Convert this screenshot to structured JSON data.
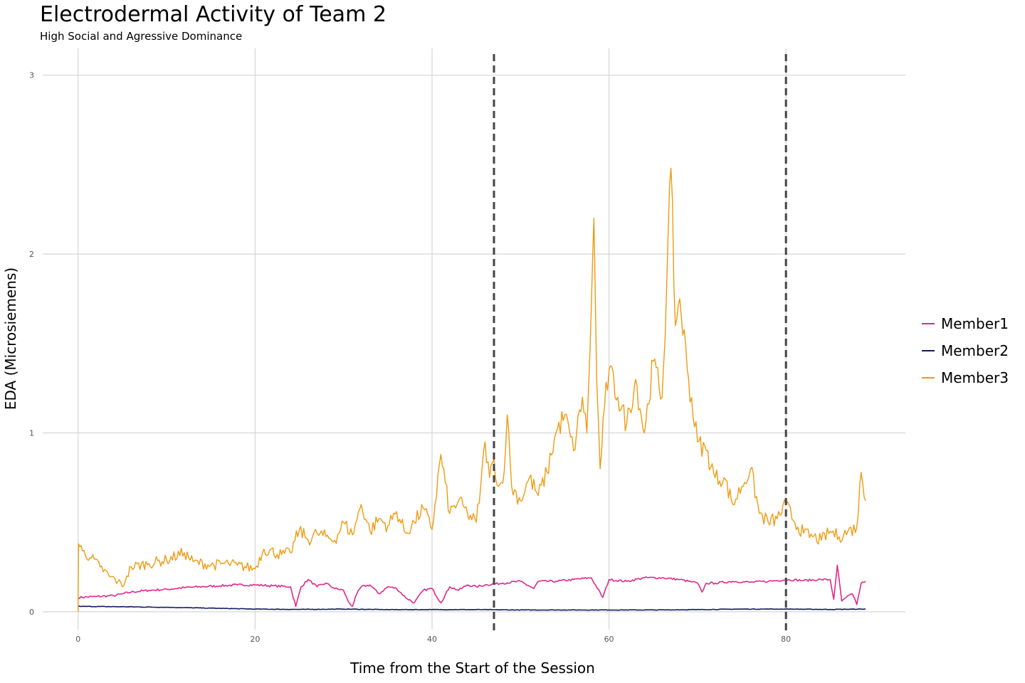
{
  "chart_data": {
    "type": "line",
    "title": "Electrodermal Activity of Team 2",
    "subtitle": "High Social and Agressive Dominance",
    "xlabel": "Time from the Start of the Session",
    "ylabel": "EDA (Microsiemens)",
    "xlim": [
      -4,
      93.5
    ],
    "ylim": [
      -0.1,
      3.15
    ],
    "x_ticks": [
      0,
      20,
      40,
      60,
      80
    ],
    "y_ticks": [
      0,
      1,
      2,
      3
    ],
    "vlines": [
      47,
      80
    ],
    "legend": [
      "Member1",
      "Member2",
      "Member3"
    ],
    "series": [
      {
        "name": "Member1",
        "color": "#e0288a",
        "points": [
          [
            0,
            0.08
          ],
          [
            2,
            0.085
          ],
          [
            4,
            0.09
          ],
          [
            5,
            0.1
          ],
          [
            6,
            0.11
          ],
          [
            8,
            0.12
          ],
          [
            10,
            0.125
          ],
          [
            12,
            0.135
          ],
          [
            14,
            0.14
          ],
          [
            16,
            0.145
          ],
          [
            18,
            0.15
          ],
          [
            20,
            0.15
          ],
          [
            22,
            0.145
          ],
          [
            24,
            0.14
          ],
          [
            24.6,
            0.03
          ],
          [
            25.2,
            0.14
          ],
          [
            26,
            0.18
          ],
          [
            27,
            0.14
          ],
          [
            28,
            0.16
          ],
          [
            29,
            0.13
          ],
          [
            30,
            0.12
          ],
          [
            30.5,
            0.06
          ],
          [
            31,
            0.03
          ],
          [
            31.5,
            0.1
          ],
          [
            32,
            0.14
          ],
          [
            33,
            0.15
          ],
          [
            34,
            0.1
          ],
          [
            35,
            0.14
          ],
          [
            36,
            0.13
          ],
          [
            37,
            0.08
          ],
          [
            38,
            0.05
          ],
          [
            39,
            0.12
          ],
          [
            40,
            0.13
          ],
          [
            41,
            0.05
          ],
          [
            42,
            0.14
          ],
          [
            43,
            0.12
          ],
          [
            44,
            0.15
          ],
          [
            45,
            0.14
          ],
          [
            46,
            0.15
          ],
          [
            48,
            0.16
          ],
          [
            50,
            0.17
          ],
          [
            51.5,
            0.13
          ],
          [
            52,
            0.17
          ],
          [
            54,
            0.17
          ],
          [
            56,
            0.18
          ],
          [
            58,
            0.19
          ],
          [
            59.3,
            0.08
          ],
          [
            60,
            0.18
          ],
          [
            62,
            0.17
          ],
          [
            64,
            0.19
          ],
          [
            66,
            0.19
          ],
          [
            68,
            0.18
          ],
          [
            70,
            0.16
          ],
          [
            70.5,
            0.11
          ],
          [
            71,
            0.16
          ],
          [
            72,
            0.16
          ],
          [
            74,
            0.17
          ],
          [
            76,
            0.165
          ],
          [
            78,
            0.17
          ],
          [
            80,
            0.18
          ],
          [
            82,
            0.175
          ],
          [
            84,
            0.18
          ],
          [
            85,
            0.18
          ],
          [
            85.4,
            0.07
          ],
          [
            85.8,
            0.26
          ],
          [
            86.3,
            0.06
          ],
          [
            86.8,
            0.08
          ],
          [
            87.5,
            0.1
          ],
          [
            88,
            0.04
          ],
          [
            88.5,
            0.16
          ],
          [
            89,
            0.17
          ]
        ]
      },
      {
        "name": "Member2",
        "color": "#101a60",
        "points": [
          [
            0,
            0.03
          ],
          [
            5,
            0.028
          ],
          [
            10,
            0.025
          ],
          [
            15,
            0.02
          ],
          [
            20,
            0.015
          ],
          [
            25,
            0.013
          ],
          [
            30,
            0.015
          ],
          [
            35,
            0.012
          ],
          [
            40,
            0.012
          ],
          [
            45,
            0.012
          ],
          [
            50,
            0.01
          ],
          [
            55,
            0.01
          ],
          [
            60,
            0.01
          ],
          [
            65,
            0.01
          ],
          [
            70,
            0.012
          ],
          [
            75,
            0.015
          ],
          [
            80,
            0.015
          ],
          [
            85,
            0.013
          ],
          [
            89,
            0.015
          ]
        ]
      },
      {
        "name": "Member3",
        "color": "#f09a10",
        "points": [
          [
            0,
            0.0
          ],
          [
            0.05,
            0.38
          ],
          [
            0.5,
            0.34
          ],
          [
            1.5,
            0.3
          ],
          [
            2.5,
            0.25
          ],
          [
            3.5,
            0.2
          ],
          [
            4.5,
            0.17
          ],
          [
            5,
            0.14
          ],
          [
            5.5,
            0.2
          ],
          [
            6,
            0.25
          ],
          [
            8,
            0.27
          ],
          [
            10,
            0.29
          ],
          [
            12,
            0.33
          ],
          [
            13,
            0.28
          ],
          [
            15,
            0.26
          ],
          [
            17,
            0.27
          ],
          [
            18,
            0.26
          ],
          [
            20,
            0.24
          ],
          [
            21,
            0.35
          ],
          [
            23,
            0.32
          ],
          [
            24,
            0.33
          ],
          [
            25,
            0.46
          ],
          [
            26,
            0.4
          ],
          [
            27,
            0.44
          ],
          [
            28,
            0.42
          ],
          [
            29,
            0.4
          ],
          [
            30,
            0.5
          ],
          [
            31,
            0.43
          ],
          [
            32,
            0.6
          ],
          [
            33,
            0.45
          ],
          [
            34,
            0.52
          ],
          [
            35,
            0.48
          ],
          [
            36,
            0.56
          ],
          [
            37,
            0.44
          ],
          [
            38,
            0.5
          ],
          [
            39,
            0.58
          ],
          [
            40,
            0.46
          ],
          [
            41,
            0.88
          ],
          [
            42,
            0.55
          ],
          [
            43,
            0.62
          ],
          [
            44,
            0.55
          ],
          [
            45,
            0.5
          ],
          [
            45.5,
            0.7
          ],
          [
            46,
            0.95
          ],
          [
            46.5,
            0.75
          ],
          [
            47,
            0.85
          ],
          [
            47.5,
            0.7
          ],
          [
            48,
            0.72
          ],
          [
            48.5,
            1.1
          ],
          [
            49,
            0.7
          ],
          [
            50,
            0.62
          ],
          [
            51,
            0.75
          ],
          [
            52,
            0.65
          ],
          [
            53,
            0.78
          ],
          [
            54,
            1.0
          ],
          [
            55,
            1.1
          ],
          [
            56,
            0.9
          ],
          [
            57,
            1.2
          ],
          [
            57.5,
            1.0
          ],
          [
            58,
            1.7
          ],
          [
            58.3,
            2.2
          ],
          [
            58.6,
            1.3
          ],
          [
            59,
            0.8
          ],
          [
            59.5,
            1.15
          ],
          [
            60,
            1.35
          ],
          [
            61,
            1.2
          ],
          [
            62,
            1.05
          ],
          [
            63,
            1.3
          ],
          [
            64,
            1.0
          ],
          [
            65,
            1.4
          ],
          [
            66,
            1.2
          ],
          [
            66.5,
            1.8
          ],
          [
            67,
            2.48
          ],
          [
            67.5,
            1.6
          ],
          [
            68,
            1.75
          ],
          [
            69,
            1.3
          ],
          [
            70,
            0.95
          ],
          [
            71,
            0.9
          ],
          [
            72,
            0.75
          ],
          [
            73,
            0.75
          ],
          [
            74,
            0.6
          ],
          [
            75,
            0.7
          ],
          [
            76,
            0.8
          ],
          [
            77,
            0.55
          ],
          [
            78,
            0.5
          ],
          [
            79,
            0.52
          ],
          [
            80,
            0.6
          ],
          [
            81,
            0.5
          ],
          [
            82,
            0.44
          ],
          [
            83,
            0.42
          ],
          [
            84,
            0.4
          ],
          [
            85,
            0.45
          ],
          [
            86,
            0.42
          ],
          [
            87,
            0.45
          ],
          [
            88,
            0.47
          ],
          [
            88.5,
            0.78
          ],
          [
            89,
            0.62
          ]
        ]
      }
    ]
  }
}
